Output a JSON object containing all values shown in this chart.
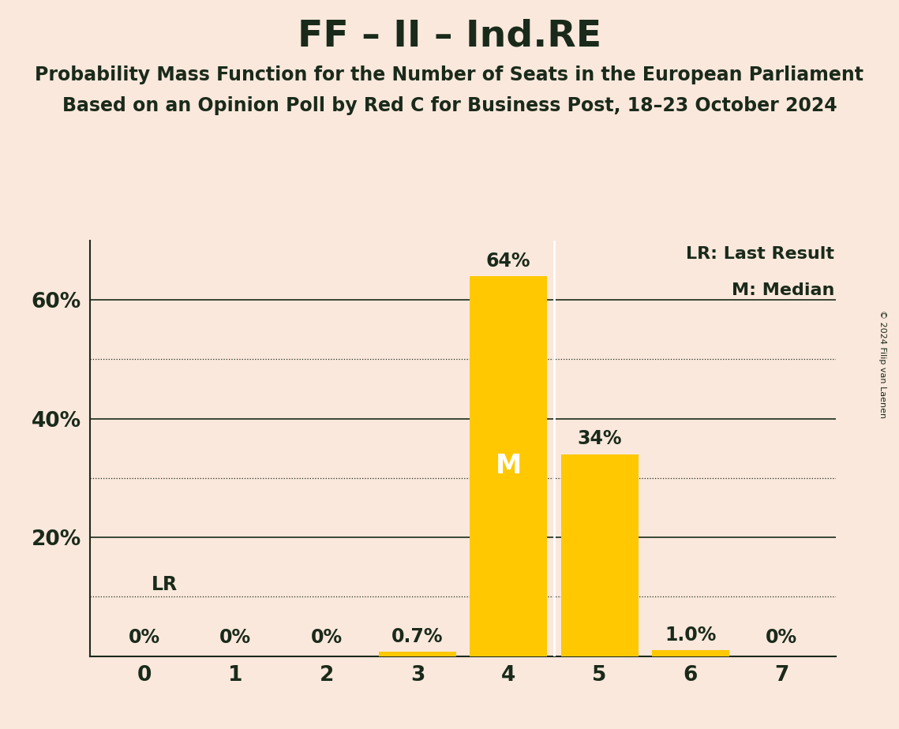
{
  "title": "FF – II – Ind.RE",
  "subtitle1": "Probability Mass Function for the Number of Seats in the European Parliament",
  "subtitle2": "Based on an Opinion Poll by Red C for Business Post, 18–23 October 2024",
  "copyright": "© 2024 Filip van Laenen",
  "categories": [
    0,
    1,
    2,
    3,
    4,
    5,
    6,
    7
  ],
  "values": [
    0.0,
    0.0,
    0.0,
    0.7,
    64.0,
    34.0,
    1.0,
    0.0
  ],
  "bar_color": "#FFC800",
  "background_color": "#FAE8DC",
  "text_color": "#1a2a1a",
  "bar_labels": [
    "0%",
    "0%",
    "0%",
    "0.7%",
    "64%",
    "34%",
    "1.0%",
    "0%"
  ],
  "median_seat": 4,
  "last_result_seat": 3,
  "ylim": [
    0,
    70
  ],
  "yticks": [
    0,
    20,
    40,
    60
  ],
  "ytick_labels": [
    "",
    "20%",
    "40%",
    "60%"
  ],
  "dotted_yticks": [
    10,
    30,
    50
  ],
  "legend_text1": "LR: Last Result",
  "legend_text2": "M: Median",
  "lr_label": "LR",
  "m_label": "M",
  "title_fontsize": 34,
  "subtitle_fontsize": 17,
  "bar_label_fontsize": 17,
  "axis_fontsize": 19,
  "legend_fontsize": 16,
  "m_fontsize": 24
}
